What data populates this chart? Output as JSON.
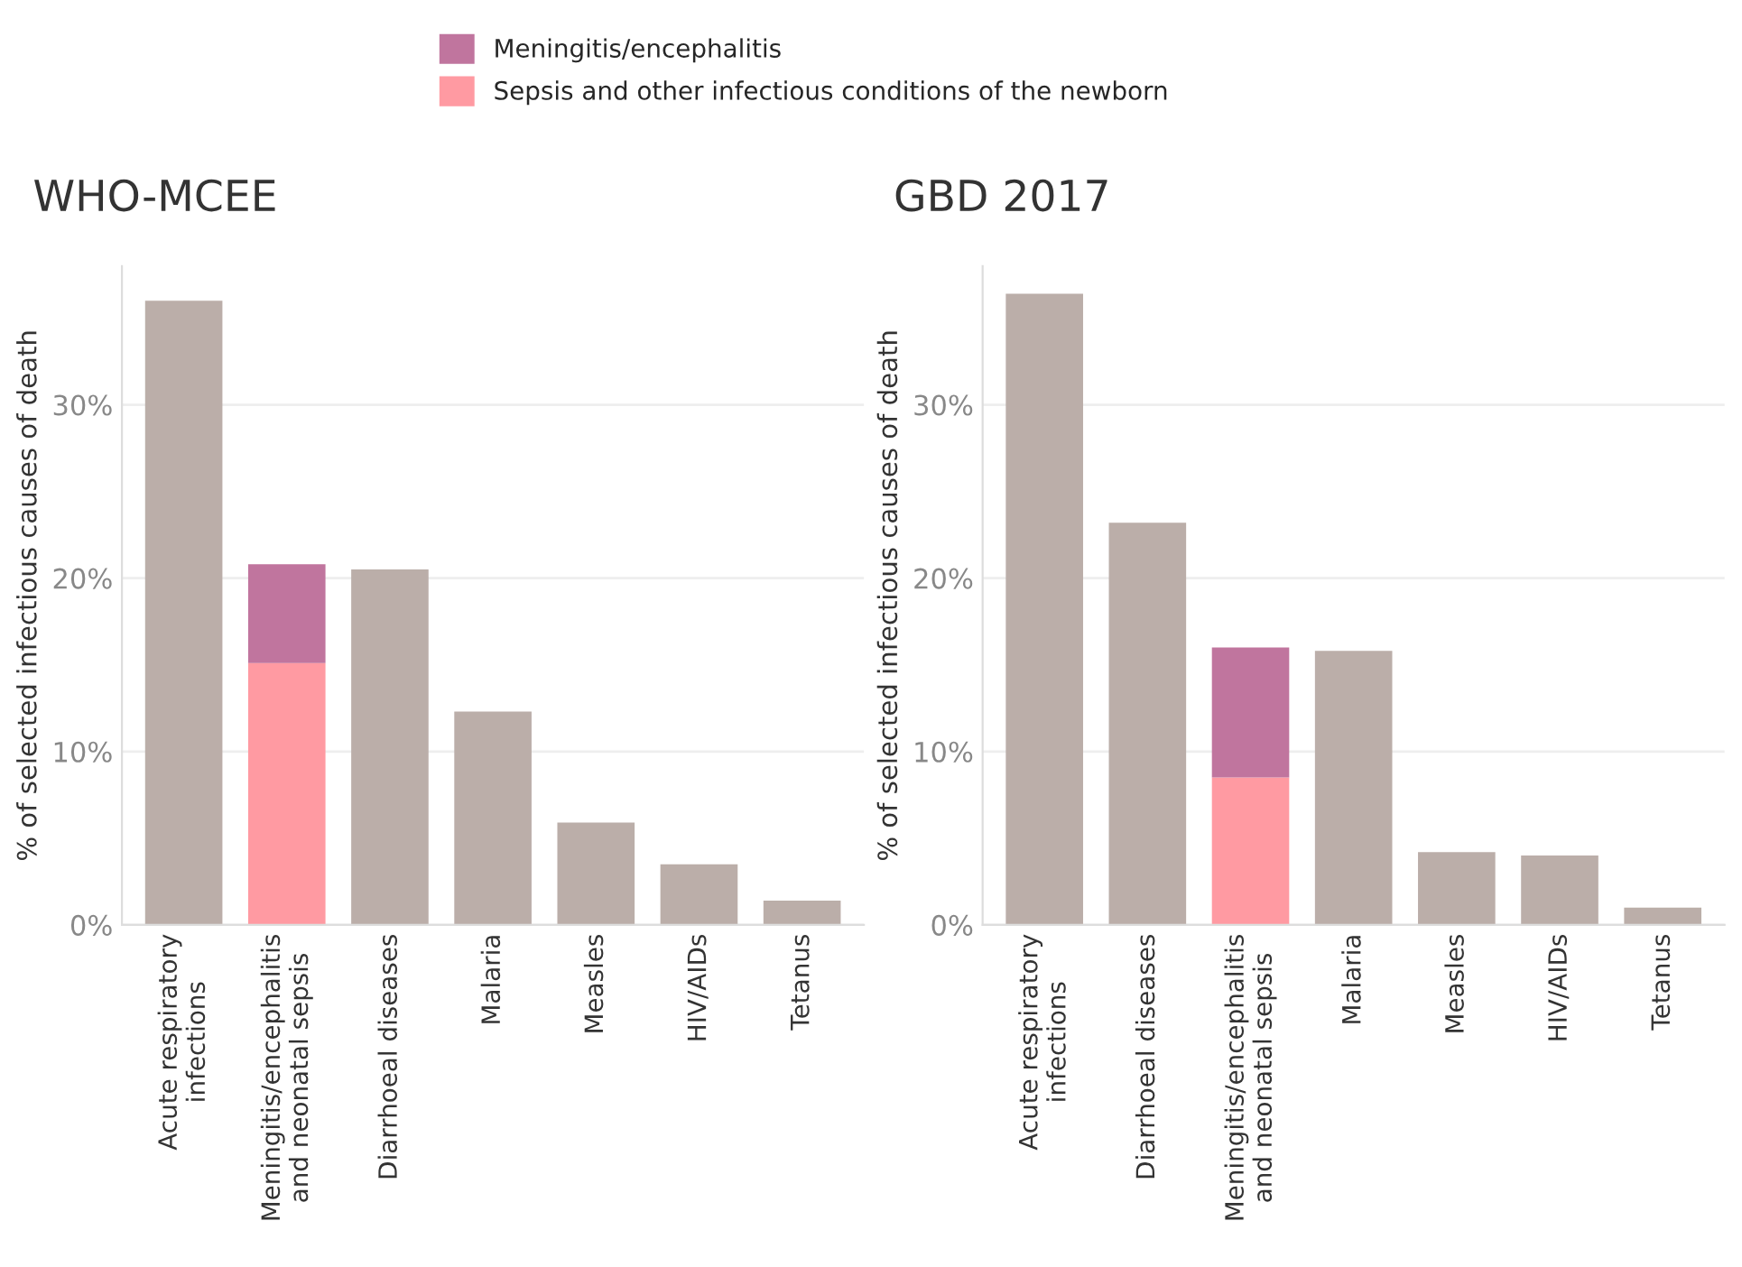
{
  "chart_data": [
    {
      "type": "bar",
      "title": "WHO-MCEE",
      "ylabel": "% of selected infectious causes of death",
      "stacked": true,
      "grid": "y",
      "legend": "top",
      "categories": [
        "Acute respiratory\ninfections",
        "Meningitis/encephalitis\nand neonatal sepsis",
        "Diarrhoeal diseases",
        "Malaria",
        "Measles",
        "HIV/AIDs",
        "Tetanus"
      ],
      "ylim": [
        0,
        38
      ],
      "yticks": [
        {
          "value": 0,
          "label": "0%"
        },
        {
          "value": 10,
          "label": "10%"
        },
        {
          "value": 20,
          "label": "20%"
        },
        {
          "value": 30,
          "label": "30%"
        }
      ],
      "series": [
        {
          "color": "#bbaea9",
          "values": [
            36.0,
            null,
            20.5,
            12.3,
            5.9,
            3.5,
            1.4
          ]
        },
        {
          "name": "Sepsis and other infectious conditions of the newborn",
          "color": "#ff9aa2",
          "values": [
            null,
            15.1,
            null,
            null,
            null,
            null,
            null
          ]
        },
        {
          "name": "Meningitis/encephalitis",
          "color": "#c0759e",
          "values": [
            null,
            5.7,
            null,
            null,
            null,
            null,
            null
          ]
        }
      ]
    },
    {
      "type": "bar",
      "title": "GBD 2017",
      "ylabel": "% of selected infectious causes of death",
      "stacked": true,
      "grid": "y",
      "legend": "top",
      "categories": [
        "Acute respiratory\ninfections",
        "Diarrhoeal diseases",
        "Meningitis/encephalitis\nand neonatal sepsis",
        "Malaria",
        "Measles",
        "HIV/AIDs",
        "Tetanus"
      ],
      "ylim": [
        0,
        38
      ],
      "yticks": [
        {
          "value": 0,
          "label": "0%"
        },
        {
          "value": 10,
          "label": "10%"
        },
        {
          "value": 20,
          "label": "20%"
        },
        {
          "value": 30,
          "label": "30%"
        }
      ],
      "series": [
        {
          "color": "#bbaea9",
          "values": [
            36.4,
            23.2,
            null,
            15.8,
            4.2,
            4.0,
            1.0
          ]
        },
        {
          "name": "Sepsis and other infectious conditions of the newborn",
          "color": "#ff9aa2",
          "values": [
            null,
            null,
            8.5,
            null,
            null,
            null,
            null
          ]
        },
        {
          "name": "Meningitis/encephalitis",
          "color": "#c0759e",
          "values": [
            null,
            null,
            7.5,
            null,
            null,
            null,
            null
          ]
        }
      ]
    }
  ]
}
